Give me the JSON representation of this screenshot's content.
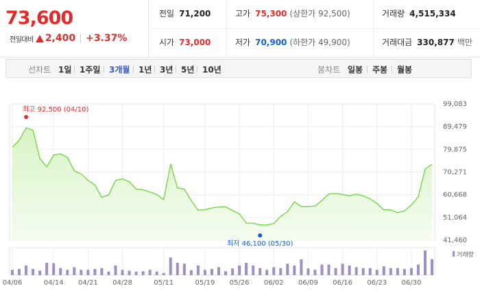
{
  "quote": {
    "price": "73,600",
    "change_label": "전일대비",
    "change": "2,400",
    "change_pct": "+3.37%"
  },
  "stats": {
    "prev_close": {
      "label": "전일",
      "value": "71,200"
    },
    "open": {
      "label": "시가",
      "value": "73,000"
    },
    "high": {
      "label": "고가",
      "value": "75,300",
      "sub": "(상한가 92,500)"
    },
    "low": {
      "label": "저가",
      "value": "70,900",
      "sub": "(하한가 49,900)"
    },
    "volume": {
      "label": "거래량",
      "value": "4,515,334"
    },
    "trade_value": {
      "label": "거래대금",
      "value": "330,877",
      "unit": "백만"
    }
  },
  "toolbar": {
    "line_chart_label": "선차트",
    "periods": [
      "1일",
      "1주일",
      "3개월",
      "1년",
      "3년",
      "5년",
      "10년"
    ],
    "active_period": "3개월",
    "candle_chart_label": "봉차트",
    "candle_periods": [
      "일봉",
      "주봉",
      "월봉"
    ]
  },
  "colors": {
    "up": "#e12c2c",
    "down": "#1160d6",
    "line": "#6ed23c",
    "volume_bar": "#9e8fc6"
  },
  "chart_data": {
    "type": "area",
    "y_ticks": [
      "99,083",
      "89,479",
      "79,875",
      "70,271",
      "60,668",
      "51,064",
      "41,460"
    ],
    "ylim": [
      41460,
      99083
    ],
    "x_tick_labels": [
      "04/06",
      "04/14",
      "04/21",
      "04/28",
      "05/11",
      "05/19",
      "05/26",
      "06/02",
      "06/09",
      "06/16",
      "06/23",
      "06/30"
    ],
    "x_tick_index": [
      0,
      6,
      11,
      16,
      22,
      28,
      33,
      38,
      43,
      48,
      53,
      58
    ],
    "high_annotation": "최고 92,500 (04/10)",
    "high_index": 2,
    "high_value": 92500,
    "low_annotation": "최저 46,100 (05/30)",
    "low_index": 36,
    "low_value": 46100,
    "volume_label": "거래량",
    "series": [
      {
        "values": [
          80800,
          83800,
          89000,
          88000,
          76000,
          72500,
          77500,
          78000,
          76500,
          70800,
          69500,
          66800,
          64900,
          59600,
          60600,
          66800,
          67400,
          66200,
          63100,
          62800,
          61800,
          60800,
          58600,
          73700,
          63600,
          63100,
          58200,
          54100,
          54400,
          55100,
          55500,
          55600,
          54000,
          52600,
          48700,
          48700,
          47900,
          47900,
          48500,
          51500,
          53500,
          57700,
          55700,
          55700,
          55900,
          58300,
          61000,
          61200,
          60800,
          60200,
          61000,
          60200,
          59000,
          57000,
          54300,
          54300,
          53100,
          53900,
          56400,
          59800,
          71600,
          73600
        ]
      }
    ],
    "volume": [
      30,
      35,
      55,
      35,
      25,
      70,
      68,
      40,
      30,
      45,
      30,
      30,
      35,
      40,
      20,
      55,
      30,
      25,
      20,
      22,
      30,
      20,
      12,
      100,
      70,
      65,
      28,
      55,
      30,
      35,
      45,
      22,
      38,
      55,
      70,
      55,
      40,
      30,
      45,
      40,
      65,
      55,
      90,
      38,
      30,
      60,
      60,
      40,
      65,
      55,
      45,
      40,
      40,
      30,
      50,
      40,
      40,
      35,
      40,
      60,
      140,
      90
    ]
  }
}
